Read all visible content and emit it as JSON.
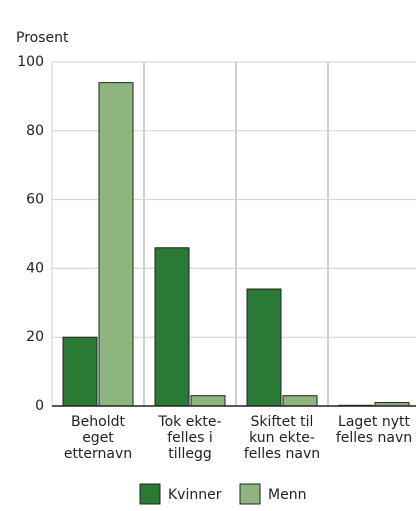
{
  "chart_data": {
    "type": "bar",
    "y_label": "Prosent",
    "categories": [
      [
        "Beholdt",
        "eget",
        "etternavn"
      ],
      [
        "Tok ekte-",
        "felles i",
        "tillegg"
      ],
      [
        "Skiftet til",
        "kun ekte-",
        "felles navn"
      ],
      [
        "Laget nytt",
        "felles navn"
      ]
    ],
    "series": [
      {
        "name": "Kvinner",
        "color": "#2a7a36",
        "values": [
          20,
          46,
          34,
          0.2
        ]
      },
      {
        "name": "Menn",
        "color": "#8db57d",
        "values": [
          94,
          3,
          3,
          1
        ]
      }
    ],
    "ylim": [
      0,
      100
    ],
    "yticks": [
      0,
      20,
      40,
      60,
      80,
      100
    ],
    "grid": true,
    "legend": "bottom"
  }
}
